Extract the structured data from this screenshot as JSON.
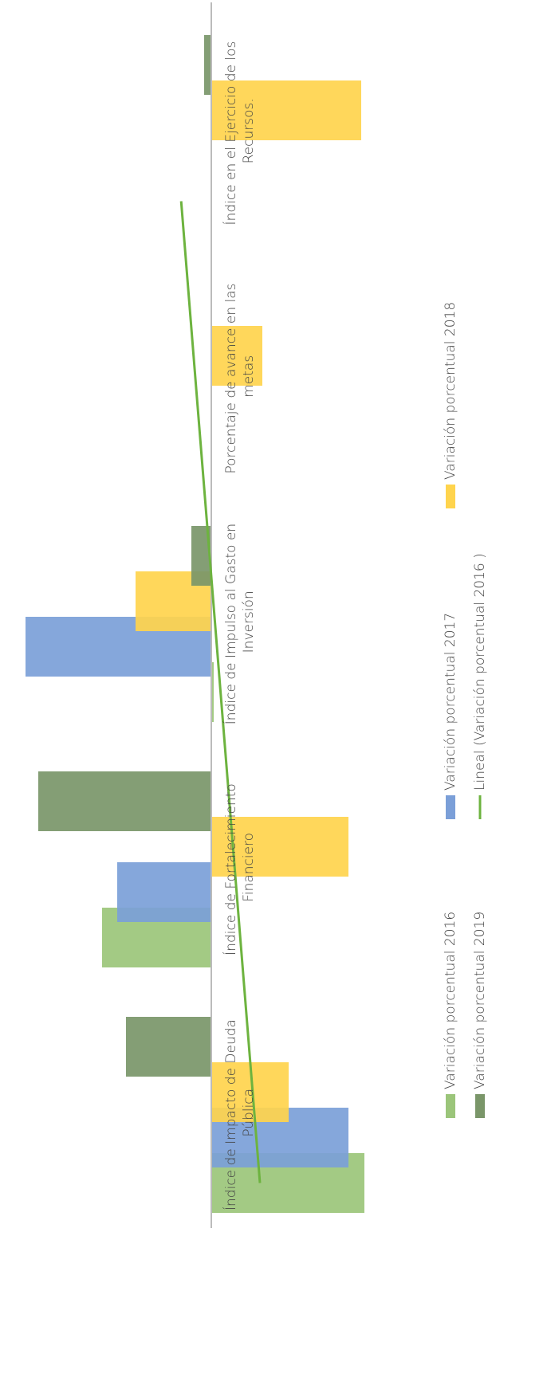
{
  "chart_data": {
    "type": "bar",
    "categories": [
      "Índice de Impacto de Deuda Pública",
      "Índice de Fortalecimiento Financiero",
      "Índice de Impulso al Gasto en Inversión",
      "Porcentaje de avance en las metas",
      "Índice en el Ejercicio de los Recursos."
    ],
    "series": [
      {
        "name": "Variación porcentual 2016",
        "color": "#9bc57a",
        "values": [
          -192,
          137,
          -3,
          0,
          0
        ]
      },
      {
        "name": "Variación porcentual 2017",
        "color": "#7b9fd8",
        "values": [
          -172,
          118,
          233,
          0,
          0
        ]
      },
      {
        "name": "Variación porcentual 2018",
        "color": "#ffd44d",
        "values": [
          -97,
          -172,
          95,
          -64,
          -188
        ]
      },
      {
        "name": "Variación porcentual 2019",
        "color": "#7a9669",
        "values": [
          107,
          217,
          25,
          0,
          9
        ]
      }
    ],
    "trendline": {
      "name": "Lineal (Variación porcentual 2016 )",
      "color": "#6db33f"
    },
    "ylim": [
      -235,
      255
    ],
    "rotated": true
  }
}
